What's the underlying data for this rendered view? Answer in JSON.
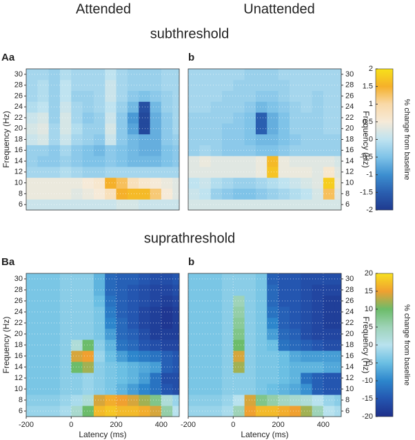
{
  "chart_data": [
    {
      "type": "heatmap",
      "panel_label": "Aa",
      "column_title": "Attended",
      "row_title": "subthreshold",
      "x": [
        -200,
        -150,
        -100,
        -50,
        0,
        50,
        100,
        150,
        200,
        250,
        300,
        350,
        400,
        450
      ],
      "y": [
        6,
        8,
        10,
        12,
        14,
        16,
        18,
        20,
        22,
        24,
        26,
        28,
        30
      ],
      "z": [
        [
          0.1,
          0.1,
          0.1,
          0.1,
          0.1,
          0.1,
          0.1,
          0.1,
          0.2,
          0.2,
          0.1,
          0.1,
          0.1,
          0.1
        ],
        [
          0.4,
          0.4,
          0.4,
          0.4,
          0.3,
          0.4,
          0.5,
          0.8,
          1.5,
          1.6,
          1.6,
          1.2,
          0.5,
          0.3
        ],
        [
          0.4,
          0.4,
          0.4,
          0.4,
          0.4,
          0.5,
          0.6,
          1.5,
          1.3,
          0.8,
          0.6,
          0.5,
          0.4,
          0.3
        ],
        [
          -0.2,
          -0.2,
          -0.2,
          -0.1,
          -0.2,
          -0.3,
          -0.3,
          -0.2,
          -0.2,
          -0.2,
          -0.2,
          -0.2,
          -0.2,
          -0.2
        ],
        [
          -0.3,
          -0.4,
          -0.4,
          -0.3,
          -0.4,
          -0.5,
          -0.5,
          -0.4,
          -0.5,
          -0.6,
          -0.6,
          -0.6,
          -0.5,
          -0.4
        ],
        [
          -0.3,
          -0.3,
          -0.4,
          -0.2,
          -0.4,
          -0.5,
          -0.6,
          -0.4,
          -0.5,
          -0.6,
          -0.7,
          -0.7,
          -0.5,
          -0.4
        ],
        [
          0.1,
          0.2,
          -0.2,
          0.1,
          -0.2,
          -0.3,
          -0.4,
          0.1,
          -0.4,
          -0.6,
          -0.7,
          -0.7,
          -0.4,
          -0.3
        ],
        [
          0.2,
          0.3,
          -0.2,
          0.2,
          -0.1,
          -0.3,
          -0.3,
          0.2,
          -0.4,
          -0.8,
          -1.8,
          -0.7,
          -0.4,
          -0.2
        ],
        [
          0.1,
          0.2,
          -0.3,
          0.2,
          -0.2,
          -0.4,
          -0.3,
          0.1,
          -0.4,
          -0.9,
          -1.8,
          -0.7,
          -0.4,
          -0.2
        ],
        [
          -0.1,
          0.0,
          -0.3,
          0.1,
          -0.2,
          -0.3,
          -0.2,
          0.0,
          -0.3,
          -0.6,
          -1.7,
          -0.6,
          -0.3,
          -0.2
        ],
        [
          -0.2,
          -0.1,
          -0.3,
          0.0,
          -0.3,
          -0.3,
          -0.2,
          0.1,
          -0.2,
          -0.4,
          -0.5,
          -0.4,
          -0.3,
          -0.2
        ],
        [
          -0.2,
          -0.1,
          -0.3,
          0.0,
          -0.2,
          -0.2,
          -0.2,
          0.1,
          -0.2,
          -0.3,
          -0.3,
          -0.3,
          -0.2,
          -0.2
        ],
        [
          -0.2,
          -0.2,
          -0.3,
          -0.1,
          -0.2,
          -0.2,
          -0.2,
          0.0,
          -0.2,
          -0.3,
          -0.3,
          -0.3,
          -0.2,
          -0.2
        ]
      ],
      "xlim": [
        -200,
        480
      ],
      "ylim": [
        5,
        31
      ],
      "yticks": [
        6,
        8,
        10,
        12,
        14,
        16,
        18,
        20,
        22,
        24,
        26,
        28,
        30
      ],
      "ylabel": "Frequency (Hz)",
      "yaxis_side": "left",
      "grid": true
    },
    {
      "type": "heatmap",
      "panel_label": "b",
      "column_title": "Unattended",
      "x": [
        -200,
        -150,
        -100,
        -50,
        0,
        50,
        100,
        150,
        200,
        250,
        300,
        350,
        400,
        450
      ],
      "y": [
        6,
        8,
        10,
        12,
        14,
        16,
        18,
        20,
        22,
        24,
        26,
        28,
        30
      ],
      "z": [
        [
          0.2,
          0.2,
          0.2,
          0.2,
          0.2,
          0.2,
          0.2,
          0.2,
          0.2,
          0.2,
          0.2,
          0.2,
          0.2,
          0.2
        ],
        [
          0.1,
          0.0,
          -0.3,
          -0.4,
          -0.5,
          -0.5,
          -0.4,
          -0.3,
          -0.2,
          -0.1,
          0.0,
          0.2,
          1.3,
          0.3
        ],
        [
          0.0,
          0.1,
          -0.1,
          -0.2,
          -0.3,
          -0.3,
          -0.2,
          -0.1,
          0.0,
          0.1,
          0.2,
          0.3,
          1.8,
          0.4
        ],
        [
          0.3,
          0.3,
          0.3,
          0.3,
          0.3,
          0.3,
          0.4,
          1.7,
          0.4,
          0.4,
          0.4,
          0.3,
          0.6,
          0.3
        ],
        [
          0.3,
          0.4,
          0.3,
          0.3,
          0.3,
          0.3,
          0.4,
          1.6,
          0.4,
          0.3,
          0.3,
          0.3,
          0.3,
          0.2
        ],
        [
          -0.3,
          -0.2,
          -0.3,
          -0.4,
          -0.4,
          -0.4,
          -0.5,
          -0.5,
          -0.4,
          -0.3,
          -0.3,
          -0.3,
          -0.3,
          -0.3
        ],
        [
          -0.3,
          -0.3,
          -0.3,
          -0.4,
          -0.4,
          -0.5,
          -0.6,
          -0.6,
          -0.5,
          -0.4,
          -0.3,
          -0.3,
          -0.3,
          -0.3
        ],
        [
          -0.3,
          -0.3,
          -0.3,
          -0.4,
          -0.4,
          -0.5,
          -1.5,
          -0.7,
          -0.5,
          -0.3,
          -0.3,
          -0.3,
          -0.2,
          -0.2
        ],
        [
          -0.3,
          -0.3,
          -0.3,
          -0.3,
          -0.4,
          -0.5,
          -1.5,
          -0.7,
          -0.5,
          -0.3,
          -0.3,
          -0.3,
          -0.2,
          -0.2
        ],
        [
          -0.2,
          -0.2,
          -0.3,
          -0.3,
          -0.3,
          -0.4,
          -0.6,
          -0.5,
          -0.4,
          -0.3,
          -0.2,
          -0.3,
          -0.2,
          -0.2
        ],
        [
          -0.2,
          -0.2,
          -0.2,
          -0.3,
          -0.3,
          -0.3,
          -0.4,
          -0.4,
          -0.3,
          -0.2,
          -0.2,
          -0.3,
          -0.2,
          -0.2
        ],
        [
          -0.2,
          -0.2,
          -0.2,
          -0.2,
          -0.3,
          -0.3,
          -0.3,
          -0.3,
          -0.3,
          -0.2,
          -0.2,
          -0.2,
          -0.2,
          -0.2
        ],
        [
          -0.2,
          -0.2,
          -0.2,
          -0.2,
          -0.2,
          -0.3,
          -0.3,
          -0.3,
          -0.2,
          -0.2,
          -0.2,
          -0.2,
          -0.2,
          -0.2
        ]
      ],
      "xlim": [
        -200,
        480
      ],
      "ylim": [
        5,
        31
      ],
      "yticks": [
        6,
        8,
        10,
        12,
        14,
        16,
        18,
        20,
        22,
        24,
        26,
        28,
        30
      ],
      "ylabel": "Frequency (Hz)",
      "yaxis_side": "right",
      "grid": true,
      "colorbar": {
        "label": "% change from baseline",
        "lim": [
          -2,
          2
        ],
        "ticks": [
          -2,
          -1.5,
          -1,
          -0.5,
          0,
          0.5,
          1,
          1.5,
          2
        ],
        "colors": [
          "#1f3a8f",
          "#2a5fb0",
          "#3d8fd0",
          "#7fc3e8",
          "#bfe3f0",
          "#f6ead8",
          "#f9d9a8",
          "#f5b02a",
          "#f7e11a"
        ]
      }
    },
    {
      "type": "heatmap",
      "panel_label": "Ba",
      "row_title": "suprathreshold",
      "x": [
        -200,
        -150,
        -100,
        -50,
        0,
        50,
        100,
        150,
        200,
        250,
        300,
        350,
        400,
        450
      ],
      "y": [
        6,
        8,
        10,
        12,
        14,
        16,
        18,
        20,
        22,
        24,
        26,
        28,
        30
      ],
      "z": [
        [
          -2,
          -2,
          -2,
          -1,
          3,
          10,
          17,
          18,
          17,
          17,
          16,
          14,
          6,
          0
        ],
        [
          -3,
          -3,
          -3,
          -2,
          -1,
          2,
          14,
          16,
          15,
          14,
          12,
          8,
          2,
          -2
        ],
        [
          -4,
          -4,
          -4,
          -3,
          -3,
          -2,
          -3,
          -4,
          -6,
          -8,
          -10,
          -12,
          -15,
          -16
        ],
        [
          -4,
          -4,
          -4,
          -3,
          -3,
          -2,
          -3,
          -4,
          -5,
          -6,
          -8,
          -12,
          -16,
          -16
        ],
        [
          -4,
          -4,
          -4,
          -3,
          10,
          12,
          -3,
          -4,
          -5,
          -6,
          -7,
          -8,
          -14,
          -15
        ],
        [
          -4,
          -4,
          -4,
          -3,
          14,
          15,
          -2,
          -5,
          -8,
          -10,
          -11,
          -12,
          -14,
          -15
        ],
        [
          -4,
          -4,
          -4,
          -3,
          2,
          10,
          -3,
          -6,
          -12,
          -13,
          -15,
          -16,
          -17,
          -17
        ],
        [
          -4,
          -4,
          -4,
          -3,
          -3,
          -3,
          -4,
          -8,
          -13,
          -14,
          -16,
          -18,
          -18,
          -18
        ],
        [
          -4,
          -4,
          -4,
          -3,
          -3,
          -3,
          -4,
          -10,
          -13,
          -15,
          -17,
          -18,
          -19,
          -18
        ],
        [
          -4,
          -4,
          -4,
          -3,
          -3,
          -3,
          -4,
          -11,
          -14,
          -15,
          -17,
          -18,
          -19,
          -18
        ],
        [
          -4,
          -4,
          -4,
          -3,
          -3,
          -3,
          -5,
          -12,
          -14,
          -15,
          -16,
          -17,
          -18,
          -17
        ],
        [
          -4,
          -4,
          -4,
          -3,
          -3,
          -3,
          -6,
          -13,
          -14,
          -15,
          -16,
          -17,
          -17,
          -16
        ],
        [
          -4,
          -4,
          -4,
          -3,
          -3,
          -3,
          -6,
          -13,
          -14,
          -14,
          -15,
          -16,
          -16,
          -15
        ]
      ],
      "xlim": [
        -200,
        480
      ],
      "xticks": [
        -200,
        0,
        200,
        400
      ],
      "xlabel": "Latency (ms)",
      "ylim": [
        5,
        31
      ],
      "yticks": [
        6,
        8,
        10,
        12,
        14,
        16,
        18,
        20,
        22,
        24,
        26,
        28,
        30
      ],
      "ylabel": "Frequency (Hz)",
      "yaxis_side": "left",
      "grid": true
    },
    {
      "type": "heatmap",
      "panel_label": "b",
      "x": [
        -200,
        -150,
        -100,
        -50,
        0,
        50,
        100,
        150,
        200,
        250,
        300,
        350,
        400,
        450
      ],
      "y": [
        6,
        8,
        10,
        12,
        14,
        16,
        18,
        20,
        22,
        24,
        26,
        28,
        30
      ],
      "z": [
        [
          -2,
          -2,
          -2,
          -1,
          5,
          15,
          17,
          17,
          16,
          15,
          12,
          5,
          0,
          -1
        ],
        [
          -3,
          -3,
          -3,
          -2,
          0,
          14,
          8,
          6,
          4,
          3,
          2,
          0,
          -2,
          -3
        ],
        [
          -4,
          -4,
          -4,
          -3,
          -3,
          -3,
          -4,
          -5,
          -6,
          -7,
          -9,
          -14,
          -15,
          -15
        ],
        [
          -4,
          -4,
          -4,
          -3,
          -3,
          -3,
          -4,
          -4,
          -5,
          -6,
          -12,
          -14,
          -15,
          -15
        ],
        [
          -4,
          -4,
          -4,
          -3,
          12,
          -3,
          -4,
          -4,
          -5,
          -6,
          -6,
          -6,
          -7,
          -7
        ],
        [
          -4,
          -4,
          -4,
          -3,
          14,
          -3,
          -4,
          -4,
          -5,
          -7,
          -8,
          -8,
          -8,
          -8
        ],
        [
          -4,
          -4,
          -4,
          -3,
          10,
          -3,
          -4,
          -5,
          -12,
          -13,
          -14,
          -15,
          -16,
          -16
        ],
        [
          -4,
          -4,
          -4,
          -3,
          8,
          -3,
          -4,
          -8,
          -13,
          -14,
          -16,
          -17,
          -17,
          -17
        ],
        [
          -4,
          -4,
          -4,
          -3,
          7,
          -3,
          -4,
          -10,
          -14,
          -15,
          -16,
          -17,
          -18,
          -18
        ],
        [
          -4,
          -4,
          -4,
          -3,
          6,
          -3,
          -4,
          -12,
          -14,
          -15,
          -16,
          -17,
          -18,
          -18
        ],
        [
          -4,
          -4,
          -4,
          -3,
          5,
          -3,
          -4,
          -13,
          -15,
          -15,
          -16,
          -17,
          -18,
          -18
        ],
        [
          -4,
          -4,
          -4,
          -3,
          -3,
          -3,
          -4,
          -13,
          -15,
          -15,
          -16,
          -17,
          -17,
          -17
        ],
        [
          -4,
          -4,
          -4,
          -3,
          -3,
          -3,
          -4,
          -14,
          -15,
          -15,
          -16,
          -16,
          -16,
          -16
        ]
      ],
      "xlim": [
        -200,
        480
      ],
      "xticks": [
        -200,
        0,
        200,
        400
      ],
      "xlabel": "Latency (ms)",
      "ylim": [
        5,
        31
      ],
      "yticks": [
        6,
        8,
        10,
        12,
        14,
        16,
        18,
        20,
        22,
        24,
        26,
        28,
        30
      ],
      "ylabel": "Frequency (Hz)",
      "yaxis_side": "right",
      "grid": true,
      "colorbar": {
        "label": "% change from baseline",
        "lim": [
          -20,
          20
        ],
        "ticks": [
          -20,
          -15,
          -10,
          -5,
          0,
          5,
          10,
          15,
          20
        ],
        "colors": [
          "#1e2f8a",
          "#2456b0",
          "#2d86cc",
          "#6bbfe3",
          "#b8e2ee",
          "#9ed3b8",
          "#6cbc6a",
          "#f0a030",
          "#f8e020"
        ]
      }
    }
  ]
}
